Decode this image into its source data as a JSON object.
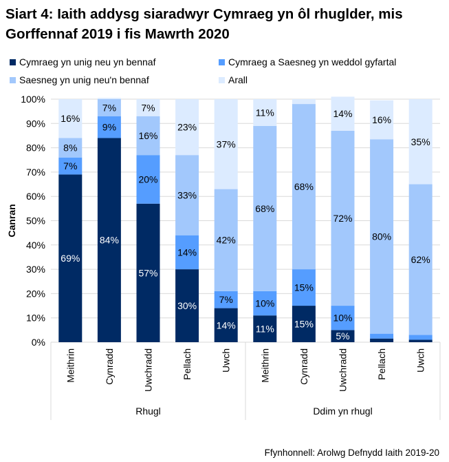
{
  "chart_data": {
    "type": "bar",
    "stacked": true,
    "title": "Siart 4: Iaith addysg siaradwyr Cymraeg yn ôl rhuglder, mis Gorffennaf 2019 i fis Mawrth 2020",
    "ylabel": "Canran",
    "xlabel": "",
    "ylim": [
      0,
      100
    ],
    "yticks": [
      "0%",
      "10%",
      "20%",
      "30%",
      "40%",
      "50%",
      "60%",
      "70%",
      "80%",
      "90%",
      "100%"
    ],
    "grid": true,
    "legend_position": "top",
    "groups": [
      {
        "label": "Rhugl",
        "categories": [
          "Meithrin",
          "Cynradd",
          "Uwchradd",
          "Pellach",
          "Uwch"
        ]
      },
      {
        "label": "Ddim yn rhugl",
        "categories": [
          "Meithrin",
          "Cynradd",
          "Uwchradd",
          "Pellach",
          "Uwch"
        ]
      }
    ],
    "categories": [
      "Meithrin",
      "Cynradd",
      "Uwchradd",
      "Pellach",
      "Uwch",
      "Meithrin",
      "Cynradd",
      "Uwchradd",
      "Pellach",
      "Uwch"
    ],
    "series": [
      {
        "name": "Cymraeg yn unig neu yn bennaf",
        "color": "#002A64",
        "label_color": "#ffffff",
        "values": [
          69,
          84,
          57,
          30,
          14,
          11,
          15,
          5,
          1.5,
          1
        ],
        "labels": [
          "69%",
          "84%",
          "57%",
          "30%",
          "14%",
          "11%",
          "15%",
          "5%",
          "",
          ""
        ]
      },
      {
        "name": "Cymraeg a Saesneg yn weddol gyfartal",
        "color": "#559DFF",
        "label_color": "#000000",
        "values": [
          7,
          9,
          20,
          14,
          7,
          10,
          15,
          10,
          2,
          2
        ],
        "labels": [
          "7%",
          "9%",
          "20%",
          "14%",
          "7%",
          "10%",
          "15%",
          "10%",
          "",
          ""
        ]
      },
      {
        "name": "Saesneg yn unig neu'n bennaf",
        "color": "#A2C8FC",
        "label_color": "#000000",
        "values": [
          8,
          7,
          16,
          33,
          42,
          68,
          68,
          72,
          80,
          62
        ],
        "labels": [
          "8%",
          "7%",
          "16%",
          "33%",
          "42%",
          "68%",
          "68%",
          "72%",
          "80%",
          "62%"
        ]
      },
      {
        "name": "Arall",
        "color": "#DCEBFF",
        "label_color": "#000000",
        "values": [
          16,
          0.5,
          7,
          23,
          37,
          11,
          2,
          14,
          16,
          35
        ],
        "labels": [
          "16%",
          "",
          "7%",
          "23%",
          "37%",
          "11%",
          "",
          "14%",
          "16%",
          "35%"
        ]
      }
    ]
  },
  "source": "Ffynhonnell: Arolwg Defnydd Iaith 2019-20"
}
